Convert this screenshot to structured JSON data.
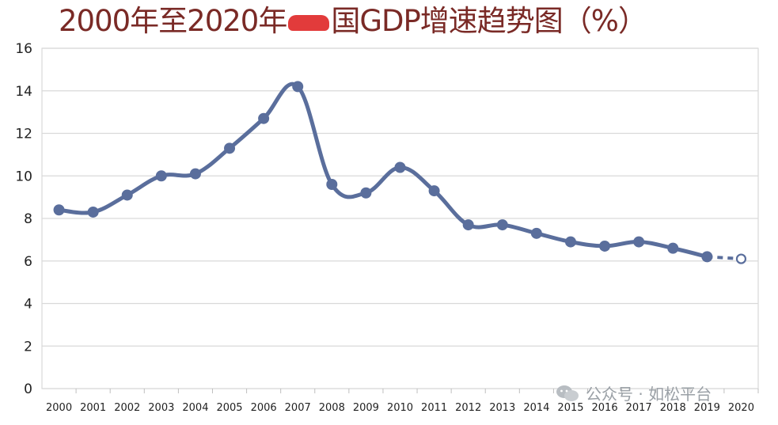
{
  "title_pre": "2000年至2020年",
  "title_post": "国GDP增速趋势图（%）",
  "watermark": "公众号 · 如松平台",
  "colors": {
    "line": "#5a6e9c",
    "title": "#7a2a26",
    "grid": "#d9d9d9"
  },
  "chart_data": {
    "type": "line",
    "title": "2000年至2020年我国GDP增速趋势图（%）",
    "xlabel": "",
    "ylabel": "",
    "categories": [
      "2000",
      "2001",
      "2002",
      "2003",
      "2004",
      "2005",
      "2006",
      "2007",
      "2008",
      "2009",
      "2010",
      "2011",
      "2012",
      "2013",
      "2014",
      "2015",
      "2016",
      "2017",
      "2018",
      "2019",
      "2020"
    ],
    "yticks": [
      "0",
      "2",
      "4",
      "6",
      "8",
      "10",
      "12",
      "14",
      "16"
    ],
    "ylim": [
      0,
      16
    ],
    "grid": "horizontal",
    "series": [
      {
        "values": [
          8.4,
          8.3,
          9.1,
          10.0,
          10.1,
          11.3,
          12.7,
          14.2,
          9.6,
          9.2,
          10.4,
          9.3,
          7.7,
          7.7,
          7.3,
          6.9,
          6.7,
          6.9,
          6.6,
          6.2,
          6.1
        ],
        "last_point_dashed": true,
        "last_point_hollow": true
      }
    ]
  }
}
